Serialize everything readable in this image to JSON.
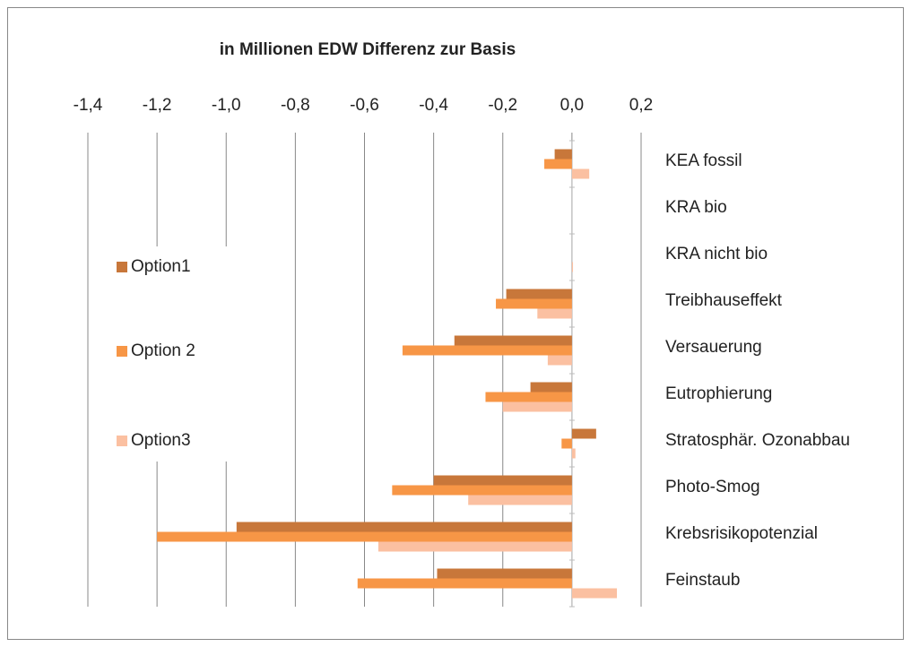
{
  "chart_data": {
    "type": "barh",
    "title": "in Millionen EDW Differenz zur Basis",
    "categories": [
      "KEA fossil",
      "KRA bio",
      "KRA nicht bio",
      "Treibhauseffekt",
      "Versauerung",
      "Eutrophierung",
      "Stratosphär. Ozonabbau",
      "Photo-Smog",
      "Krebsrisikopotenzial",
      "Feinstaub"
    ],
    "series": [
      {
        "name": "Option1",
        "color": "#c8773a",
        "values": [
          -0.05,
          0,
          0,
          -0.19,
          -0.34,
          -0.12,
          0.07,
          -0.4,
          -0.97,
          -0.39
        ]
      },
      {
        "name": "Option 2",
        "color": "#f79646",
        "values": [
          -0.08,
          0,
          0,
          -0.22,
          -0.49,
          -0.25,
          -0.03,
          -0.52,
          -1.2,
          -0.62
        ]
      },
      {
        "name": "Option3",
        "color": "#fbc0a1",
        "values": [
          0.05,
          0,
          0.003,
          -0.1,
          -0.07,
          -0.2,
          0.01,
          -0.3,
          -0.56,
          0.13
        ]
      }
    ],
    "xlim": [
      -1.4,
      0.2
    ],
    "xticks": [
      {
        "value": -1.4,
        "label": "-1,4"
      },
      {
        "value": -1.2,
        "label": "-1,2"
      },
      {
        "value": -1.0,
        "label": "-1,0"
      },
      {
        "value": -0.8,
        "label": "-0,8"
      },
      {
        "value": -0.6,
        "label": "-0,6"
      },
      {
        "value": -0.4,
        "label": "-0,4"
      },
      {
        "value": -0.2,
        "label": "-0,2"
      },
      {
        "value": 0,
        "label": "0,0"
      },
      {
        "value": 0.2,
        "label": "0,2"
      }
    ],
    "grid": true,
    "legend": "left"
  }
}
